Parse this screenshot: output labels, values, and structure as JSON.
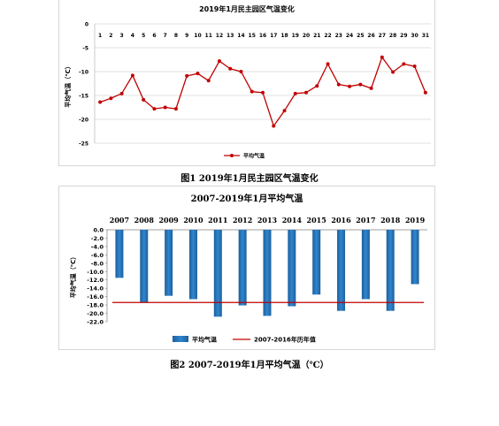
{
  "chart_data": [
    {
      "type": "line",
      "title": "2019年1月民主园区气温变化",
      "ylabel": "平均气温（℃）",
      "xlabel": "",
      "ylim": [
        -25,
        0
      ],
      "yticks": [
        0,
        -5,
        -10,
        -15,
        -20,
        -25
      ],
      "x": [
        "1",
        "2",
        "3",
        "4",
        "5",
        "6",
        "7",
        "8",
        "9",
        "10",
        "11",
        "12",
        "13",
        "14",
        "15",
        "16",
        "17",
        "18",
        "19",
        "20",
        "21",
        "22",
        "23",
        "24",
        "25",
        "26",
        "27",
        "28",
        "29",
        "30",
        "31"
      ],
      "series": [
        {
          "name": "平均气温",
          "color": "#c00000",
          "values": [
            -16.4,
            -15.6,
            -14.6,
            -10.8,
            -15.9,
            -17.8,
            -17.5,
            -17.8,
            -10.9,
            -10.4,
            -11.9,
            -7.8,
            -9.4,
            -10.0,
            -14.2,
            -14.4,
            -21.4,
            -18.2,
            -14.6,
            -14.4,
            -13.0,
            -8.4,
            -12.7,
            -13.1,
            -12.7,
            -13.5,
            -7.0,
            -10.1,
            -8.4,
            -8.9,
            -14.4
          ]
        }
      ],
      "grid": true,
      "legend": "bottom-center",
      "x_axis_position": "top"
    },
    {
      "type": "bar",
      "title": "2007-2019年1月平均气温",
      "ylabel": "平均气温（℃）",
      "xlabel": "",
      "ylim": [
        -22,
        0
      ],
      "yticks": [
        "0.0",
        "-2.0",
        "-4.0",
        "-6.0",
        "-8.0",
        "-10.0",
        "-12.0",
        "-14.0",
        "-16.0",
        "-18.0",
        "-20.0",
        "-22.0"
      ],
      "categories": [
        "2007",
        "2008",
        "2009",
        "2010",
        "2011",
        "2012",
        "2013",
        "2014",
        "2015",
        "2016",
        "2017",
        "2018",
        "2019"
      ],
      "series": [
        {
          "name": "平均气温",
          "color": "#2e75b6",
          "values": [
            -11.5,
            -17.4,
            -15.8,
            -16.6,
            -20.8,
            -18.1,
            -20.6,
            -18.3,
            -15.5,
            -19.4,
            -16.6,
            -19.4,
            -13.0
          ]
        }
      ],
      "reference_line": {
        "name": "2007-2016年历年值",
        "value": -17.4,
        "color": "#c00000"
      },
      "grid": false,
      "legend": "bottom-center",
      "x_axis_position": "top"
    }
  ],
  "captions": {
    "fig1": "图1 2019年1月民主园区气温变化",
    "fig2": "图2 2007-2019年1月平均气温（℃）"
  }
}
